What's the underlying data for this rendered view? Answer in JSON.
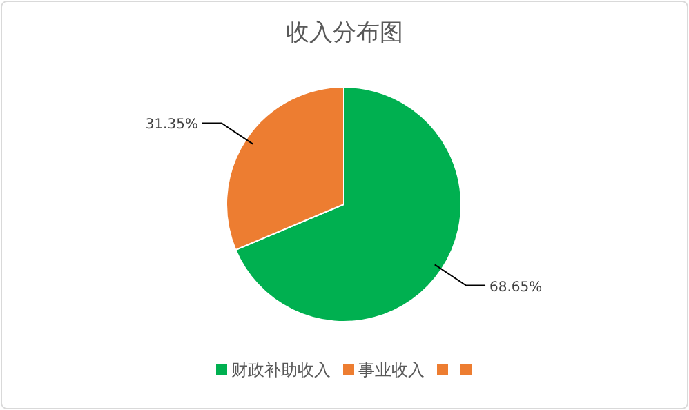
{
  "chart_data": {
    "type": "pie",
    "title": "收入分布图",
    "categories": [
      "财政补助收入",
      "事业收入",
      null,
      null
    ],
    "values": [
      68.65,
      31.35,
      0,
      0
    ],
    "colors": [
      "#00b050",
      "#ed7d31",
      "#ed7d31",
      "#ed7d31"
    ],
    "value_labels": [
      "68.65%",
      "31.35%",
      null,
      null
    ],
    "legend": "bottom"
  }
}
